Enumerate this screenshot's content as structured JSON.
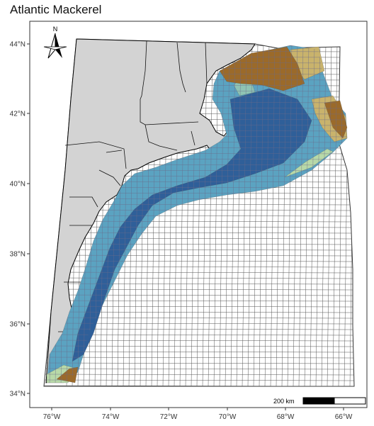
{
  "title": "Atlantic Mackerel",
  "axes": {
    "y_ticks": [
      "34°N",
      "36°N",
      "38°N",
      "40°N",
      "42°N",
      "44°N"
    ],
    "x_ticks": [
      "76°W",
      "74°W",
      "72°W",
      "70°W",
      "68°W",
      "66°W"
    ]
  },
  "north_arrow": {
    "label": "N"
  },
  "scale_bar": {
    "label": "200 km"
  },
  "colors": {
    "land": "#d3d3d3",
    "grid_line": "#333333",
    "high": "#2f5f99",
    "mid": "#5ba3c1",
    "low": "#b8d9a8",
    "edge": "#c9b36c",
    "brown": "#9b6a2a"
  }
}
